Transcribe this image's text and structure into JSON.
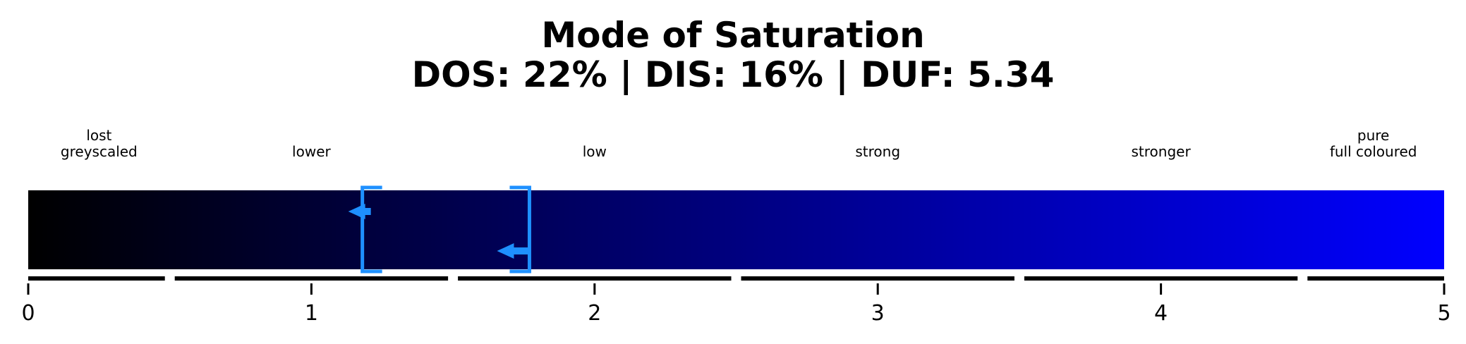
{
  "title": {
    "line1": "Mode of Saturation",
    "line2": "DOS: 22% | DIS: 16% | DUF: 5.34"
  },
  "chart_data": {
    "type": "gauge",
    "xlim": [
      0,
      5
    ],
    "ticks": [
      0,
      1,
      2,
      3,
      4,
      5
    ],
    "tick_labels": [
      "0",
      "1",
      "2",
      "3",
      "4",
      "5"
    ],
    "gradient": {
      "from": "#000000",
      "to": "#0000ff"
    },
    "marker_color": "#1e90ff",
    "segments": [
      {
        "lines": [
          "lost",
          "greyscaled"
        ],
        "range": [
          0,
          0.5
        ]
      },
      {
        "lines": [
          "lower"
        ],
        "range": [
          0.5,
          1.5
        ]
      },
      {
        "lines": [
          "low"
        ],
        "range": [
          1.5,
          2.5
        ]
      },
      {
        "lines": [
          "strong"
        ],
        "range": [
          2.5,
          3.5
        ]
      },
      {
        "lines": [
          "stronger"
        ],
        "range": [
          3.5,
          4.5
        ]
      },
      {
        "lines": [
          "pure",
          "full coloured"
        ],
        "range": [
          4.5,
          5
        ]
      }
    ],
    "markers": [
      {
        "value": 1.18,
        "arrow": "upper"
      },
      {
        "value": 1.77,
        "arrow": "lower"
      }
    ]
  }
}
